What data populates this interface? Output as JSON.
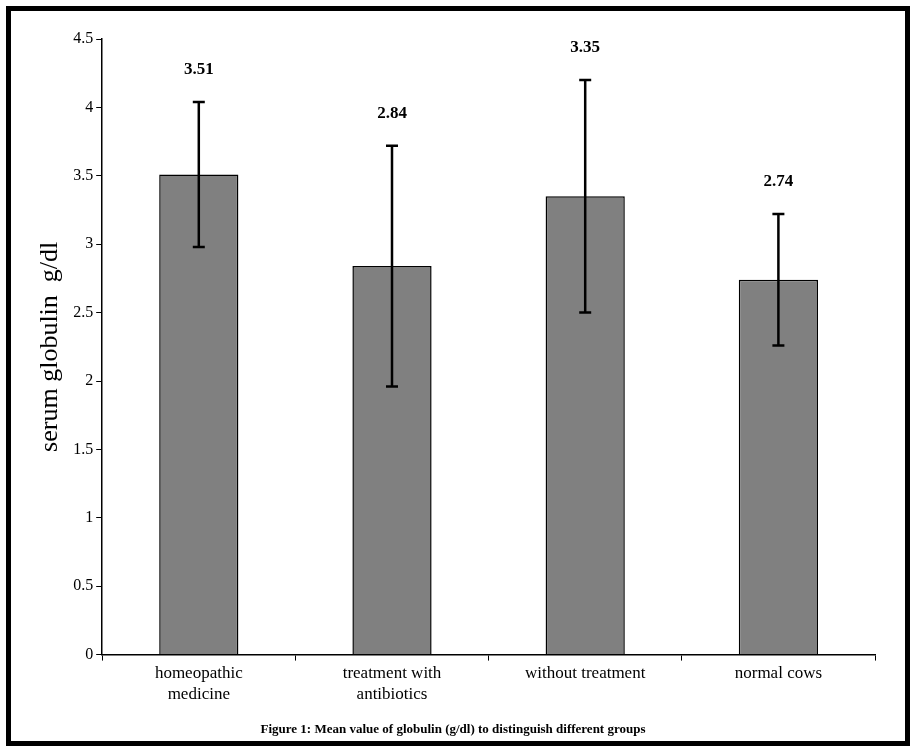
{
  "chart_data": {
    "type": "bar",
    "title": "Figure 1: Mean value of globulin (g/dl) to distinguish different groups",
    "y_label": "serum globulin  g/dl",
    "categories": [
      "homeopathic medicine",
      "treatment with antibiotics",
      "without treatment",
      "normal cows"
    ],
    "values": [
      3.51,
      2.84,
      3.35,
      2.74
    ],
    "errors": [
      0.53,
      0.88,
      0.85,
      0.48
    ],
    "color": "#808080",
    "ylim": [
      0,
      4.5
    ],
    "yticks": [
      0,
      0.5,
      1,
      1.5,
      2,
      2.5,
      3,
      3.5,
      4,
      4.5
    ],
    "grid": false,
    "data_labels": true
  }
}
